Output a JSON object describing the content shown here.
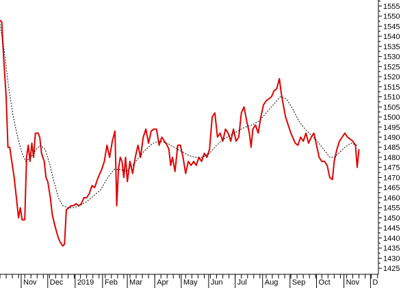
{
  "chart_data": {
    "type": "line",
    "title": "",
    "xlabel": "",
    "ylabel": "",
    "ylim": [
      1422,
      1558
    ],
    "y_ticks": [
      1425,
      1430,
      1435,
      1440,
      1445,
      1450,
      1455,
      1460,
      1465,
      1470,
      1475,
      1480,
      1485,
      1490,
      1495,
      1500,
      1505,
      1510,
      1515,
      1520,
      1525,
      1530,
      1535,
      1540,
      1545,
      1550,
      1555
    ],
    "x_range": [
      "2018-10-08",
      "2019-12-10"
    ],
    "x_ticks": [
      {
        "label": "Nov",
        "date": "2018-11-01"
      },
      {
        "label": "Dec",
        "date": "2018-12-01"
      },
      {
        "label": "2019",
        "date": "2019-01-01"
      },
      {
        "label": "Feb",
        "date": "2019-02-01"
      },
      {
        "label": "Mar",
        "date": "2019-03-01"
      },
      {
        "label": "Apr",
        "date": "2019-04-01"
      },
      {
        "label": "May",
        "date": "2019-05-01"
      },
      {
        "label": "Jun",
        "date": "2019-06-01"
      },
      {
        "label": "Jul",
        "date": "2019-07-01"
      },
      {
        "label": "Aug",
        "date": "2019-08-01"
      },
      {
        "label": "Sep",
        "date": "2019-09-01"
      },
      {
        "label": "Oct",
        "date": "2019-10-01"
      },
      {
        "label": "Nov",
        "date": "2019-11-01"
      },
      {
        "label": "D",
        "date": "2019-12-01"
      }
    ],
    "grid": false,
    "legend": "none",
    "colors": {
      "price": "#e00000",
      "moving_average": "#000000",
      "axis": "#000000"
    },
    "series": [
      {
        "style": "solid",
        "points": [
          [
            "2018-10-08",
            1548
          ],
          [
            "2018-10-10",
            1547
          ],
          [
            "2018-10-12",
            1530
          ],
          [
            "2018-10-15",
            1510
          ],
          [
            "2018-10-17",
            1485
          ],
          [
            "2018-10-19",
            1485
          ],
          [
            "2018-10-22",
            1476
          ],
          [
            "2018-10-24",
            1470
          ],
          [
            "2018-10-26",
            1462
          ],
          [
            "2018-10-29",
            1450
          ],
          [
            "2018-10-31",
            1455
          ],
          [
            "2018-11-02",
            1449
          ],
          [
            "2018-11-05",
            1449
          ],
          [
            "2018-11-07",
            1480
          ],
          [
            "2018-11-09",
            1486
          ],
          [
            "2018-11-11",
            1478
          ],
          [
            "2018-11-13",
            1487
          ],
          [
            "2018-11-15",
            1480
          ],
          [
            "2018-11-17",
            1492
          ],
          [
            "2018-11-20",
            1492
          ],
          [
            "2018-11-22",
            1490
          ],
          [
            "2018-11-24",
            1482
          ],
          [
            "2018-11-27",
            1478
          ],
          [
            "2018-11-29",
            1470
          ],
          [
            "2018-12-01",
            1468
          ],
          [
            "2018-12-04",
            1460
          ],
          [
            "2018-12-06",
            1452
          ],
          [
            "2018-12-08",
            1448
          ],
          [
            "2018-12-11",
            1443
          ],
          [
            "2018-12-13",
            1440
          ],
          [
            "2018-12-15",
            1438
          ],
          [
            "2018-12-18",
            1436
          ],
          [
            "2018-12-20",
            1437
          ],
          [
            "2018-12-22",
            1454
          ],
          [
            "2018-12-25",
            1455
          ],
          [
            "2018-12-27",
            1456
          ],
          [
            "2018-12-30",
            1456
          ],
          [
            "2019-01-02",
            1457
          ],
          [
            "2019-01-05",
            1456
          ],
          [
            "2019-01-08",
            1457
          ],
          [
            "2019-01-11",
            1460
          ],
          [
            "2019-01-14",
            1460
          ],
          [
            "2019-01-17",
            1462
          ],
          [
            "2019-01-20",
            1466
          ],
          [
            "2019-01-23",
            1465
          ],
          [
            "2019-01-27",
            1470
          ],
          [
            "2019-01-31",
            1474
          ],
          [
            "2019-02-03",
            1478
          ],
          [
            "2019-02-06",
            1486
          ],
          [
            "2019-02-09",
            1480
          ],
          [
            "2019-02-12",
            1488
          ],
          [
            "2019-02-15",
            1493
          ],
          [
            "2019-02-17",
            1456
          ],
          [
            "2019-02-19",
            1474
          ],
          [
            "2019-02-21",
            1480
          ],
          [
            "2019-02-23",
            1478
          ],
          [
            "2019-02-25",
            1470
          ],
          [
            "2019-02-27",
            1480
          ],
          [
            "2019-03-01",
            1468
          ],
          [
            "2019-03-04",
            1478
          ],
          [
            "2019-03-07",
            1472
          ],
          [
            "2019-03-10",
            1480
          ],
          [
            "2019-03-13",
            1486
          ],
          [
            "2019-03-16",
            1480
          ],
          [
            "2019-03-19",
            1490
          ],
          [
            "2019-03-22",
            1494
          ],
          [
            "2019-03-25",
            1487
          ],
          [
            "2019-03-28",
            1493
          ],
          [
            "2019-03-31",
            1494
          ],
          [
            "2019-04-03",
            1494
          ],
          [
            "2019-04-06",
            1486
          ],
          [
            "2019-04-09",
            1490
          ],
          [
            "2019-04-12",
            1488
          ],
          [
            "2019-04-15",
            1486
          ],
          [
            "2019-04-17",
            1484
          ],
          [
            "2019-04-19",
            1476
          ],
          [
            "2019-04-21",
            1480
          ],
          [
            "2019-04-24",
            1473
          ],
          [
            "2019-04-27",
            1486
          ],
          [
            "2019-04-30",
            1486
          ],
          [
            "2019-05-03",
            1480
          ],
          [
            "2019-05-06",
            1472
          ],
          [
            "2019-05-09",
            1478
          ],
          [
            "2019-05-12",
            1476
          ],
          [
            "2019-05-15",
            1478
          ],
          [
            "2019-05-18",
            1476
          ],
          [
            "2019-05-21",
            1480
          ],
          [
            "2019-05-24",
            1478
          ],
          [
            "2019-05-27",
            1482
          ],
          [
            "2019-05-30",
            1480
          ],
          [
            "2019-06-02",
            1484
          ],
          [
            "2019-06-05",
            1500
          ],
          [
            "2019-06-08",
            1502
          ],
          [
            "2019-06-11",
            1490
          ],
          [
            "2019-06-14",
            1492
          ],
          [
            "2019-06-17",
            1488
          ],
          [
            "2019-06-20",
            1494
          ],
          [
            "2019-06-23",
            1492
          ],
          [
            "2019-06-26",
            1488
          ],
          [
            "2019-06-29",
            1494
          ],
          [
            "2019-07-02",
            1488
          ],
          [
            "2019-07-05",
            1490
          ],
          [
            "2019-07-08",
            1502
          ],
          [
            "2019-07-11",
            1505
          ],
          [
            "2019-07-14",
            1498
          ],
          [
            "2019-07-17",
            1492
          ],
          [
            "2019-07-19",
            1485
          ],
          [
            "2019-07-21",
            1494
          ],
          [
            "2019-07-24",
            1496
          ],
          [
            "2019-07-27",
            1492
          ],
          [
            "2019-07-30",
            1500
          ],
          [
            "2019-08-02",
            1506
          ],
          [
            "2019-08-05",
            1508
          ],
          [
            "2019-08-08",
            1509
          ],
          [
            "2019-08-11",
            1510
          ],
          [
            "2019-08-14",
            1513
          ],
          [
            "2019-08-17",
            1514
          ],
          [
            "2019-08-20",
            1519
          ],
          [
            "2019-08-22",
            1512
          ],
          [
            "2019-08-24",
            1507
          ],
          [
            "2019-08-27",
            1500
          ],
          [
            "2019-08-30",
            1496
          ],
          [
            "2019-09-02",
            1492
          ],
          [
            "2019-09-04",
            1490
          ],
          [
            "2019-09-07",
            1487
          ],
          [
            "2019-09-10",
            1486
          ],
          [
            "2019-09-13",
            1490
          ],
          [
            "2019-09-16",
            1488
          ],
          [
            "2019-09-19",
            1492
          ],
          [
            "2019-09-22",
            1487
          ],
          [
            "2019-09-25",
            1490
          ],
          [
            "2019-09-28",
            1492
          ],
          [
            "2019-10-01",
            1486
          ],
          [
            "2019-10-04",
            1480
          ],
          [
            "2019-10-07",
            1478
          ],
          [
            "2019-10-10",
            1478
          ],
          [
            "2019-10-13",
            1476
          ],
          [
            "2019-10-16",
            1470
          ],
          [
            "2019-10-19",
            1469
          ],
          [
            "2019-10-21",
            1478
          ],
          [
            "2019-10-24",
            1484
          ],
          [
            "2019-10-27",
            1488
          ],
          [
            "2019-10-30",
            1490
          ],
          [
            "2019-11-02",
            1492
          ],
          [
            "2019-11-05",
            1490
          ],
          [
            "2019-11-08",
            1489
          ],
          [
            "2019-11-11",
            1488
          ],
          [
            "2019-11-14",
            1486
          ],
          [
            "2019-11-16",
            1475
          ],
          [
            "2019-11-18",
            1484
          ]
        ]
      },
      {
        "style": "dashed",
        "points": [
          [
            "2018-10-08",
            1546
          ],
          [
            "2018-10-13",
            1532
          ],
          [
            "2018-10-18",
            1514
          ],
          [
            "2018-10-23",
            1500
          ],
          [
            "2018-10-28",
            1490
          ],
          [
            "2018-11-02",
            1482
          ],
          [
            "2018-11-06",
            1478
          ],
          [
            "2018-11-12",
            1480
          ],
          [
            "2018-11-18",
            1484
          ],
          [
            "2018-11-23",
            1486
          ],
          [
            "2018-11-28",
            1484
          ],
          [
            "2018-12-03",
            1477
          ],
          [
            "2018-12-08",
            1468
          ],
          [
            "2018-12-13",
            1460
          ],
          [
            "2018-12-18",
            1456
          ],
          [
            "2018-12-24",
            1455
          ],
          [
            "2018-12-30",
            1455
          ],
          [
            "2019-01-06",
            1456
          ],
          [
            "2019-01-14",
            1458
          ],
          [
            "2019-01-22",
            1461
          ],
          [
            "2019-01-30",
            1464
          ],
          [
            "2019-02-07",
            1470
          ],
          [
            "2019-02-14",
            1474
          ],
          [
            "2019-02-21",
            1474
          ],
          [
            "2019-02-28",
            1473
          ],
          [
            "2019-03-07",
            1476
          ],
          [
            "2019-03-14",
            1480
          ],
          [
            "2019-03-22",
            1484
          ],
          [
            "2019-03-30",
            1487
          ],
          [
            "2019-04-07",
            1488
          ],
          [
            "2019-04-15",
            1487
          ],
          [
            "2019-04-23",
            1485
          ],
          [
            "2019-05-01",
            1483
          ],
          [
            "2019-05-09",
            1481
          ],
          [
            "2019-05-17",
            1480
          ],
          [
            "2019-05-25",
            1480
          ],
          [
            "2019-06-02",
            1482
          ],
          [
            "2019-06-10",
            1486
          ],
          [
            "2019-06-18",
            1489
          ],
          [
            "2019-06-26",
            1491
          ],
          [
            "2019-07-04",
            1493
          ],
          [
            "2019-07-12",
            1495
          ],
          [
            "2019-07-20",
            1496
          ],
          [
            "2019-07-28",
            1498
          ],
          [
            "2019-08-05",
            1502
          ],
          [
            "2019-08-13",
            1506
          ],
          [
            "2019-08-21",
            1510
          ],
          [
            "2019-08-28",
            1509
          ],
          [
            "2019-09-04",
            1504
          ],
          [
            "2019-09-11",
            1498
          ],
          [
            "2019-09-18",
            1494
          ],
          [
            "2019-09-25",
            1491
          ],
          [
            "2019-10-02",
            1488
          ],
          [
            "2019-10-09",
            1484
          ],
          [
            "2019-10-16",
            1480
          ],
          [
            "2019-10-21",
            1480
          ],
          [
            "2019-10-26",
            1482
          ],
          [
            "2019-11-02",
            1485
          ],
          [
            "2019-11-09",
            1487
          ],
          [
            "2019-11-16",
            1486
          ]
        ]
      }
    ]
  }
}
